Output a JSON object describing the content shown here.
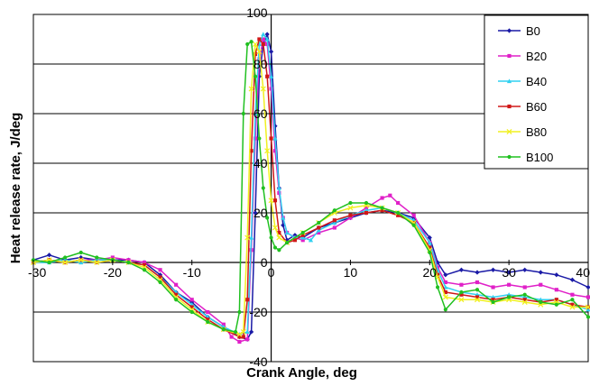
{
  "chart_data": {
    "type": "line",
    "title": "",
    "xlabel": "Crank Angle, deg",
    "ylabel": "Heat release rate, J/deg",
    "xlim": [
      -30,
      40
    ],
    "ylim": [
      -40,
      100
    ],
    "xticks": [
      -30,
      -20,
      -10,
      0,
      10,
      20,
      30,
      40
    ],
    "yticks": [
      -40,
      -20,
      0,
      20,
      40,
      60,
      80,
      100
    ],
    "grid": "horizontal",
    "legend_position": "top-right",
    "series": [
      {
        "name": "B0",
        "color": "#1a1aa6",
        "marker": "diamond",
        "points": [
          [
            -30,
            1
          ],
          [
            -28,
            3
          ],
          [
            -26,
            1
          ],
          [
            -24,
            2
          ],
          [
            -22,
            1
          ],
          [
            -20,
            1
          ],
          [
            -18,
            1
          ],
          [
            -16,
            0
          ],
          [
            -14,
            -5
          ],
          [
            -12,
            -12
          ],
          [
            -10,
            -16
          ],
          [
            -8,
            -22
          ],
          [
            -6,
            -26
          ],
          [
            -4,
            -30
          ],
          [
            -3,
            -31
          ],
          [
            -2.5,
            -28
          ],
          [
            -2,
            20
          ],
          [
            -1.5,
            75
          ],
          [
            -1,
            88
          ],
          [
            -0.5,
            92
          ],
          [
            0,
            85
          ],
          [
            0.5,
            55
          ],
          [
            1,
            30
          ],
          [
            1.5,
            15
          ],
          [
            2,
            9
          ],
          [
            3,
            11
          ],
          [
            4,
            10
          ],
          [
            6,
            14
          ],
          [
            8,
            16
          ],
          [
            10,
            18
          ],
          [
            12,
            20
          ],
          [
            14,
            21
          ],
          [
            16,
            20
          ],
          [
            18,
            18
          ],
          [
            20,
            10
          ],
          [
            21,
            0
          ],
          [
            22,
            -5
          ],
          [
            24,
            -3
          ],
          [
            26,
            -4
          ],
          [
            28,
            -3
          ],
          [
            30,
            -4
          ],
          [
            32,
            -3
          ],
          [
            34,
            -4
          ],
          [
            36,
            -5
          ],
          [
            38,
            -7
          ],
          [
            40,
            -10
          ]
        ]
      },
      {
        "name": "B20",
        "color": "#e020c8",
        "marker": "square",
        "points": [
          [
            -30,
            0
          ],
          [
            -28,
            1
          ],
          [
            -26,
            0
          ],
          [
            -24,
            1
          ],
          [
            -22,
            1
          ],
          [
            -20,
            2
          ],
          [
            -18,
            1
          ],
          [
            -16,
            0
          ],
          [
            -14,
            -3
          ],
          [
            -12,
            -9
          ],
          [
            -10,
            -15
          ],
          [
            -8,
            -20
          ],
          [
            -6,
            -25
          ],
          [
            -5,
            -30
          ],
          [
            -4,
            -32
          ],
          [
            -3,
            -31
          ],
          [
            -2.5,
            5
          ],
          [
            -2,
            50
          ],
          [
            -1.5,
            82
          ],
          [
            -1,
            90
          ],
          [
            -0.5,
            88
          ],
          [
            0,
            70
          ],
          [
            0.5,
            45
          ],
          [
            1,
            28
          ],
          [
            1.5,
            18
          ],
          [
            2,
            12
          ],
          [
            3,
            10
          ],
          [
            4,
            9
          ],
          [
            6,
            12
          ],
          [
            8,
            14
          ],
          [
            10,
            18
          ],
          [
            12,
            22
          ],
          [
            14,
            26
          ],
          [
            15,
            27
          ],
          [
            16,
            24
          ],
          [
            18,
            19
          ],
          [
            20,
            8
          ],
          [
            21,
            -2
          ],
          [
            22,
            -8
          ],
          [
            24,
            -9
          ],
          [
            26,
            -8
          ],
          [
            28,
            -10
          ],
          [
            30,
            -9
          ],
          [
            32,
            -10
          ],
          [
            34,
            -9
          ],
          [
            36,
            -11
          ],
          [
            38,
            -13
          ],
          [
            40,
            -14
          ]
        ]
      },
      {
        "name": "B40",
        "color": "#30d0f0",
        "marker": "triangle",
        "points": [
          [
            -30,
            0
          ],
          [
            -28,
            0
          ],
          [
            -26,
            1
          ],
          [
            -24,
            0
          ],
          [
            -22,
            1
          ],
          [
            -20,
            1
          ],
          [
            -18,
            0
          ],
          [
            -16,
            -1
          ],
          [
            -14,
            -6
          ],
          [
            -12,
            -12
          ],
          [
            -10,
            -17
          ],
          [
            -8,
            -22
          ],
          [
            -6,
            -26
          ],
          [
            -4,
            -29
          ],
          [
            -3,
            -28
          ],
          [
            -2.5,
            10
          ],
          [
            -2,
            60
          ],
          [
            -1.5,
            88
          ],
          [
            -1,
            92
          ],
          [
            -0.5,
            90
          ],
          [
            0,
            75
          ],
          [
            0.5,
            50
          ],
          [
            1,
            30
          ],
          [
            1.5,
            18
          ],
          [
            2,
            12
          ],
          [
            3,
            10
          ],
          [
            4,
            10
          ],
          [
            5,
            9
          ],
          [
            6,
            13
          ],
          [
            8,
            16
          ],
          [
            10,
            19
          ],
          [
            12,
            21
          ],
          [
            14,
            22
          ],
          [
            16,
            20
          ],
          [
            18,
            17
          ],
          [
            20,
            8
          ],
          [
            21,
            -3
          ],
          [
            22,
            -10
          ],
          [
            24,
            -12
          ],
          [
            26,
            -13
          ],
          [
            28,
            -14
          ],
          [
            30,
            -13
          ],
          [
            32,
            -14
          ],
          [
            34,
            -15
          ],
          [
            36,
            -15
          ],
          [
            38,
            -17
          ],
          [
            40,
            -19
          ]
        ]
      },
      {
        "name": "B60",
        "color": "#d01818",
        "marker": "square",
        "points": [
          [
            -30,
            0
          ],
          [
            -28,
            1
          ],
          [
            -26,
            0
          ],
          [
            -24,
            1
          ],
          [
            -22,
            0
          ],
          [
            -20,
            1
          ],
          [
            -18,
            0
          ],
          [
            -16,
            -1
          ],
          [
            -14,
            -6
          ],
          [
            -12,
            -13
          ],
          [
            -10,
            -18
          ],
          [
            -8,
            -23
          ],
          [
            -6,
            -27
          ],
          [
            -4,
            -30
          ],
          [
            -3.5,
            -30
          ],
          [
            -3,
            -15
          ],
          [
            -2.5,
            45
          ],
          [
            -2,
            84
          ],
          [
            -1.5,
            90
          ],
          [
            -1,
            88
          ],
          [
            -0.5,
            75
          ],
          [
            0,
            50
          ],
          [
            0.5,
            25
          ],
          [
            1,
            12
          ],
          [
            2,
            8
          ],
          [
            3,
            9
          ],
          [
            4,
            11
          ],
          [
            6,
            14
          ],
          [
            8,
            17
          ],
          [
            10,
            19
          ],
          [
            12,
            20
          ],
          [
            14,
            21
          ],
          [
            16,
            19
          ],
          [
            18,
            16
          ],
          [
            20,
            6
          ],
          [
            21,
            -5
          ],
          [
            22,
            -12
          ],
          [
            24,
            -13
          ],
          [
            26,
            -14
          ],
          [
            28,
            -15
          ],
          [
            30,
            -14
          ],
          [
            32,
            -15
          ],
          [
            34,
            -16
          ],
          [
            36,
            -15
          ],
          [
            38,
            -17
          ],
          [
            40,
            -18
          ]
        ]
      },
      {
        "name": "B80",
        "color": "#f0f020",
        "marker": "x",
        "points": [
          [
            -30,
            0
          ],
          [
            -28,
            1
          ],
          [
            -26,
            0
          ],
          [
            -24,
            1
          ],
          [
            -22,
            0
          ],
          [
            -20,
            1
          ],
          [
            -18,
            0
          ],
          [
            -16,
            -2
          ],
          [
            -14,
            -7
          ],
          [
            -12,
            -14
          ],
          [
            -10,
            -19
          ],
          [
            -8,
            -24
          ],
          [
            -6,
            -27
          ],
          [
            -4,
            -29
          ],
          [
            -3.5,
            -28
          ],
          [
            -3,
            10
          ],
          [
            -2.5,
            70
          ],
          [
            -2,
            88
          ],
          [
            -1.5,
            85
          ],
          [
            -1,
            70
          ],
          [
            -0.5,
            45
          ],
          [
            0,
            25
          ],
          [
            0.5,
            14
          ],
          [
            1,
            10
          ],
          [
            2,
            8
          ],
          [
            4,
            12
          ],
          [
            6,
            16
          ],
          [
            8,
            20
          ],
          [
            10,
            22
          ],
          [
            12,
            23
          ],
          [
            14,
            22
          ],
          [
            16,
            20
          ],
          [
            18,
            16
          ],
          [
            20,
            5
          ],
          [
            21,
            -6
          ],
          [
            22,
            -14
          ],
          [
            24,
            -15
          ],
          [
            26,
            -15
          ],
          [
            28,
            -16
          ],
          [
            30,
            -15
          ],
          [
            32,
            -16
          ],
          [
            34,
            -17
          ],
          [
            36,
            -16
          ],
          [
            38,
            -18
          ],
          [
            40,
            -18
          ]
        ]
      },
      {
        "name": "B100",
        "color": "#20c020",
        "marker": "circle",
        "points": [
          [
            -30,
            1
          ],
          [
            -28,
            0
          ],
          [
            -26,
            2
          ],
          [
            -24,
            4
          ],
          [
            -22,
            2
          ],
          [
            -20,
            1
          ],
          [
            -18,
            0
          ],
          [
            -16,
            -3
          ],
          [
            -14,
            -8
          ],
          [
            -12,
            -15
          ],
          [
            -10,
            -20
          ],
          [
            -8,
            -24
          ],
          [
            -6,
            -27
          ],
          [
            -4.5,
            -28
          ],
          [
            -4,
            -20
          ],
          [
            -3.5,
            60
          ],
          [
            -3,
            88
          ],
          [
            -2.5,
            89
          ],
          [
            -2,
            75
          ],
          [
            -1.5,
            50
          ],
          [
            -1,
            30
          ],
          [
            -0.5,
            18
          ],
          [
            0,
            10
          ],
          [
            0.5,
            6
          ],
          [
            1,
            5
          ],
          [
            2,
            8
          ],
          [
            4,
            12
          ],
          [
            6,
            16
          ],
          [
            8,
            21
          ],
          [
            10,
            24
          ],
          [
            12,
            24
          ],
          [
            14,
            22
          ],
          [
            16,
            20
          ],
          [
            18,
            15
          ],
          [
            20,
            4
          ],
          [
            21,
            -10
          ],
          [
            22,
            -19
          ],
          [
            24,
            -12
          ],
          [
            26,
            -11
          ],
          [
            28,
            -16
          ],
          [
            30,
            -14
          ],
          [
            32,
            -13
          ],
          [
            34,
            -16
          ],
          [
            36,
            -17
          ],
          [
            38,
            -15
          ],
          [
            40,
            -22
          ]
        ]
      }
    ]
  }
}
